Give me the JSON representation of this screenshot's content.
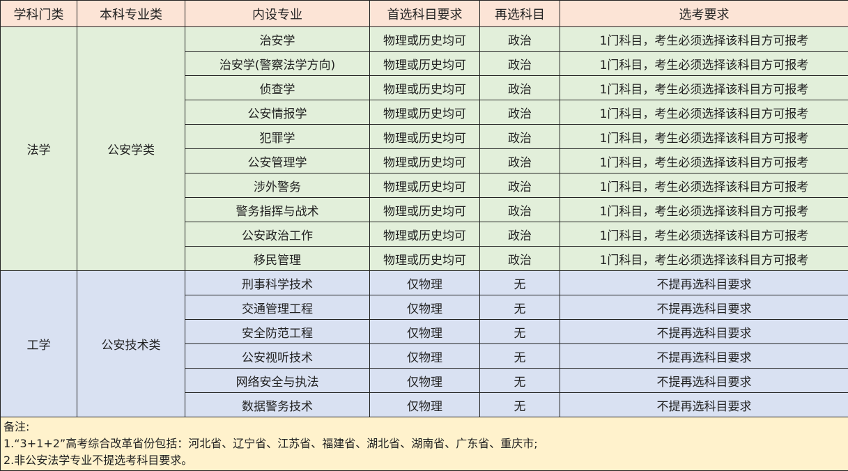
{
  "headers": [
    "学科门类",
    "本科专业类",
    "内设专业",
    "首选科目要求",
    "再选科目",
    "选考要求"
  ],
  "groups": [
    {
      "discipline": "法学",
      "category": "公安学类",
      "color": "#e2efda",
      "rows": [
        [
          "治安学",
          "物理或历史均可",
          "政治",
          "1门科目，考生必须选择该科目方可报考"
        ],
        [
          "治安学(警察法学方向)",
          "物理或历史均可",
          "政治",
          "1门科目，考生必须选择该科目方可报考"
        ],
        [
          "侦查学",
          "物理或历史均可",
          "政治",
          "1门科目，考生必须选择该科目方可报考"
        ],
        [
          "公安情报学",
          "物理或历史均可",
          "政治",
          "1门科目，考生必须选择该科目方可报考"
        ],
        [
          "犯罪学",
          "物理或历史均可",
          "政治",
          "1门科目，考生必须选择该科目方可报考"
        ],
        [
          "公安管理学",
          "物理或历史均可",
          "政治",
          "1门科目，考生必须选择该科目方可报考"
        ],
        [
          "涉外警务",
          "物理或历史均可",
          "政治",
          "1门科目，考生必须选择该科目方可报考"
        ],
        [
          "警务指挥与战术",
          "物理或历史均可",
          "政治",
          "1门科目，考生必须选择该科目方可报考"
        ],
        [
          "公安政治工作",
          "物理或历史均可",
          "政治",
          "1门科目，考生必须选择该科目方可报考"
        ],
        [
          "移民管理",
          "物理或历史均可",
          "政治",
          "1门科目，考生必须选择该科目方可报考"
        ]
      ]
    },
    {
      "discipline": "工学",
      "category": "公安技术类",
      "color": "#d9e1f2",
      "rows": [
        [
          "刑事科学技术",
          "仅物理",
          "无",
          "不提再选科目要求"
        ],
        [
          "交通管理工程",
          "仅物理",
          "无",
          "不提再选科目要求"
        ],
        [
          "安全防范工程",
          "仅物理",
          "无",
          "不提再选科目要求"
        ],
        [
          "公安视听技术",
          "仅物理",
          "无",
          "不提再选科目要求"
        ],
        [
          "网络安全与执法",
          "仅物理",
          "无",
          "不提再选科目要求"
        ],
        [
          "数据警务技术",
          "仅物理",
          "无",
          "不提再选科目要求"
        ]
      ]
    }
  ],
  "notes": [
    "备注:",
    "1.“3+1+2”高考综合改革省份包括：河北省、辽宁省、江苏省、福建省、湖北省、湖南省、广东省、重庆市;",
    "2.非公安法学专业不提选考科目要求。"
  ]
}
